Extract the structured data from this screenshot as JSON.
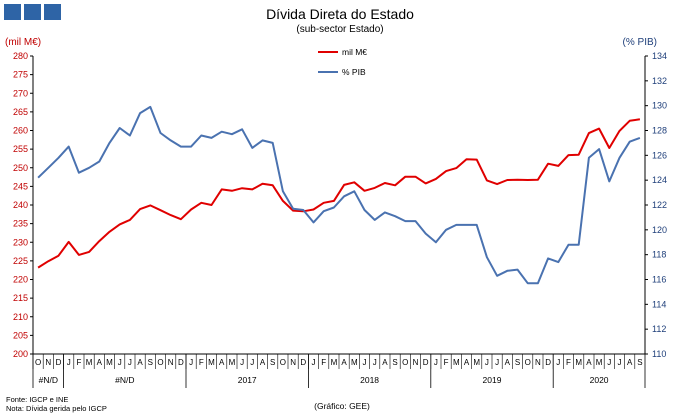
{
  "header": {
    "title": "Dívida Direta do Estado",
    "subtitle": "(sub-sector Estado)",
    "left_unit": "(mil M€)",
    "right_unit": "(% PIB)"
  },
  "footer": {
    "source": "Fonte: IGCP e INE",
    "note": "Nota: Dívida gerida pelo IGCP",
    "credit": "(Gráfico: GEE)"
  },
  "colors": {
    "red_series": "#e00000",
    "blue_series": "#4a72b0",
    "logo": "#2e64a6"
  },
  "chart_data": {
    "type": "line",
    "months": [
      "O",
      "N",
      "D",
      "J",
      "F",
      "M",
      "A",
      "M",
      "J",
      "J",
      "A",
      "S",
      "O",
      "N",
      "D",
      "J",
      "F",
      "M",
      "A",
      "M",
      "J",
      "J",
      "A",
      "S",
      "O",
      "N",
      "D",
      "J",
      "F",
      "M",
      "A",
      "M",
      "J",
      "J",
      "A",
      "S",
      "O",
      "N",
      "D",
      "J",
      "F",
      "M",
      "A",
      "M",
      "J",
      "J",
      "A",
      "S",
      "O",
      "N",
      "D",
      "J",
      "F",
      "M",
      "A",
      "M",
      "J",
      "J",
      "A",
      "S"
    ],
    "groups": [
      {
        "label": "#N/D",
        "span": 3
      },
      {
        "label": "#N/D",
        "span": 12
      },
      {
        "label": "2017",
        "span": 12
      },
      {
        "label": "2018",
        "span": 12
      },
      {
        "label": "2019",
        "span": 12
      },
      {
        "label": "2020",
        "span": 9
      }
    ],
    "y_left": {
      "min": 200,
      "max": 280,
      "step": 5
    },
    "y_right": {
      "min": 110,
      "max": 134,
      "step": 2
    },
    "series": [
      {
        "name": "mil M€",
        "axis": "left",
        "values": [
          223.2,
          224.9,
          226.4,
          230.1,
          226.6,
          227.4,
          230.3,
          232.8,
          234.8,
          236.0,
          238.9,
          239.9,
          238.6,
          237.3,
          236.2,
          238.8,
          240.6,
          240.0,
          244.2,
          243.8,
          244.5,
          244.2,
          245.7,
          245.3,
          241.1,
          238.5,
          238.3,
          238.8,
          240.6,
          241.1,
          245.4,
          246.1,
          243.8,
          244.6,
          245.9,
          245.3,
          247.6,
          247.6,
          245.8,
          247.0,
          249.1,
          249.9,
          252.3,
          252.2,
          246.6,
          245.6,
          246.7,
          246.8,
          246.7,
          246.8,
          251.1,
          250.5,
          253.4,
          253.5,
          259.3,
          260.5,
          255.3,
          259.9,
          262.6,
          263.0
        ]
      },
      {
        "name": "% PIB",
        "axis": "right",
        "values": [
          124.2,
          125.0,
          125.8,
          126.7,
          124.6,
          125.0,
          125.5,
          127.0,
          128.2,
          127.6,
          129.4,
          129.9,
          127.8,
          127.2,
          126.7,
          126.7,
          127.6,
          127.4,
          127.9,
          127.7,
          128.1,
          126.6,
          127.2,
          127.0,
          123.1,
          121.7,
          121.6,
          120.6,
          121.5,
          121.8,
          122.7,
          123.1,
          121.6,
          120.8,
          121.4,
          121.1,
          120.7,
          120.7,
          119.7,
          119.0,
          120.0,
          120.4,
          120.4,
          120.4,
          117.8,
          116.3,
          116.7,
          116.8,
          115.7,
          115.7,
          117.7,
          117.4,
          118.8,
          118.8,
          125.8,
          126.5,
          123.9,
          125.8,
          127.1,
          127.4
        ]
      }
    ]
  }
}
